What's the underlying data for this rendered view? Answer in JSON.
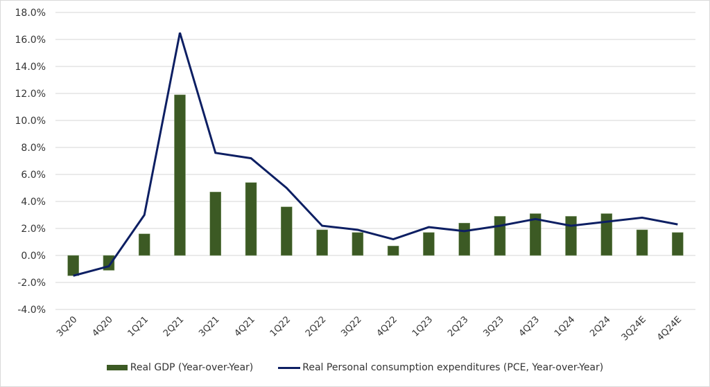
{
  "chart_data": {
    "type": "bar",
    "title": "",
    "xlabel": "",
    "ylabel": "",
    "ylim": [
      -4,
      18
    ],
    "yticks": [
      -4,
      -2,
      0,
      2,
      4,
      6,
      8,
      10,
      12,
      14,
      16,
      18
    ],
    "ytick_labels": [
      "-4.0%",
      "-2.0%",
      "0.0%",
      "2.0%",
      "4.0%",
      "6.0%",
      "8.0%",
      "10.0%",
      "12.0%",
      "14.0%",
      "16.0%",
      "18.0%"
    ],
    "grid": true,
    "legend_position": "bottom",
    "categories": [
      "3Q20",
      "4Q20",
      "1Q21",
      "2Q21",
      "3Q21",
      "4Q21",
      "1Q22",
      "2Q22",
      "3Q22",
      "4Q22",
      "1Q23",
      "2Q23",
      "3Q23",
      "4Q23",
      "1Q24",
      "2Q24",
      "3Q24E",
      "4Q24E"
    ],
    "series": [
      {
        "name": "Real GDP (Year-over-Year)",
        "type": "bar",
        "color": "#3c5a24",
        "values": [
          -1.5,
          -1.1,
          1.6,
          11.9,
          4.7,
          5.4,
          3.6,
          1.9,
          1.7,
          0.7,
          1.7,
          2.4,
          2.9,
          3.1,
          2.9,
          3.1,
          1.9,
          1.7
        ]
      },
      {
        "name": "Real Personal consumption expenditures (PCE, Year-over-Year)",
        "type": "line",
        "color": "#0d1f63",
        "values": [
          -1.5,
          -0.8,
          3.0,
          16.5,
          7.6,
          7.2,
          5.0,
          2.2,
          1.9,
          1.2,
          2.1,
          1.8,
          2.2,
          2.7,
          2.2,
          2.5,
          2.8,
          2.3
        ]
      }
    ]
  },
  "legend": {
    "gdp_label": "Real GDP (Year-over-Year)",
    "pce_label": "Real Personal consumption expenditures (PCE, Year-over-Year)"
  }
}
